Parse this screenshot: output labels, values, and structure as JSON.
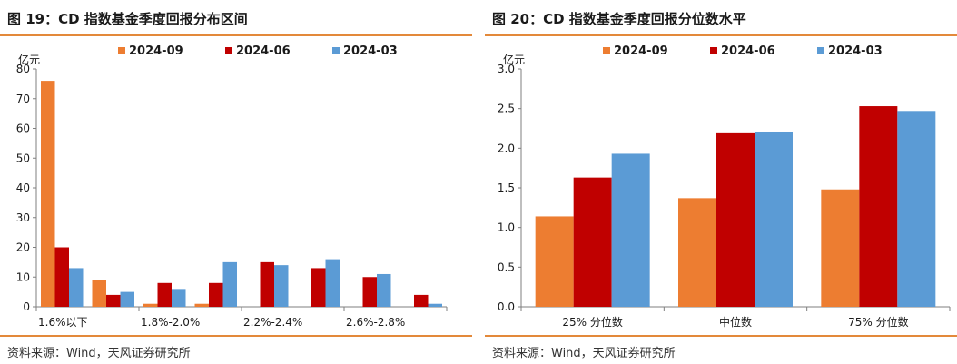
{
  "panels": [
    {
      "title": "图 19：CD 指数基金季度回报分布区间",
      "source": "资料来源：Wind，天风证券研究所"
    },
    {
      "title": "图 20：CD 指数基金季度回报分位数水平",
      "source": "资料来源：Wind，天风证券研究所"
    }
  ],
  "colors": {
    "accent": "#e3893a",
    "s2024_09": "#ed7d31",
    "s2024_06": "#c00000",
    "s2024_03": "#5b9bd5",
    "axis": "#7f7f7f",
    "grid": "#d9d9d9"
  },
  "chart_data": [
    {
      "type": "bar",
      "title": "图 19：CD 指数基金季度回报分布区间",
      "ylabel": "亿元",
      "ylim": [
        0,
        80
      ],
      "yticks": [
        0,
        10,
        20,
        30,
        40,
        50,
        60,
        70,
        80
      ],
      "tick_labels": [
        "1.6%以下",
        "",
        "1.8%-2.0%",
        "",
        "2.2%-2.4%",
        "",
        "2.6%-2.8%",
        ""
      ],
      "grid": false,
      "legend_position": "top",
      "series": [
        {
          "name": "2024-09",
          "color": "#ed7d31",
          "values": [
            76,
            9,
            1,
            1,
            0,
            0,
            0,
            0
          ]
        },
        {
          "name": "2024-06",
          "color": "#c00000",
          "values": [
            20,
            4,
            8,
            8,
            15,
            13,
            10,
            4
          ]
        },
        {
          "name": "2024-03",
          "color": "#5b9bd5",
          "values": [
            13,
            5,
            6,
            15,
            14,
            16,
            11,
            1
          ]
        }
      ]
    },
    {
      "type": "bar",
      "title": "图 20：CD 指数基金季度回报分位数水平",
      "ylabel": "亿元",
      "ylim": [
        0,
        3.0
      ],
      "yticks": [
        0,
        0.5,
        1.0,
        1.5,
        2.0,
        2.5,
        3.0
      ],
      "ytick_labels": [
        "0.0",
        "0.5",
        "1.0",
        "1.5",
        "2.0",
        "2.5",
        "3.0"
      ],
      "tick_labels": [
        "25% 分位数",
        "中位数",
        "75% 分位数"
      ],
      "grid": false,
      "legend_position": "top",
      "series": [
        {
          "name": "2024-09",
          "color": "#ed7d31",
          "values": [
            1.14,
            1.37,
            1.48
          ]
        },
        {
          "name": "2024-06",
          "color": "#c00000",
          "values": [
            1.63,
            2.2,
            2.53
          ]
        },
        {
          "name": "2024-03",
          "color": "#5b9bd5",
          "values": [
            1.93,
            2.21,
            2.47
          ]
        }
      ]
    }
  ]
}
